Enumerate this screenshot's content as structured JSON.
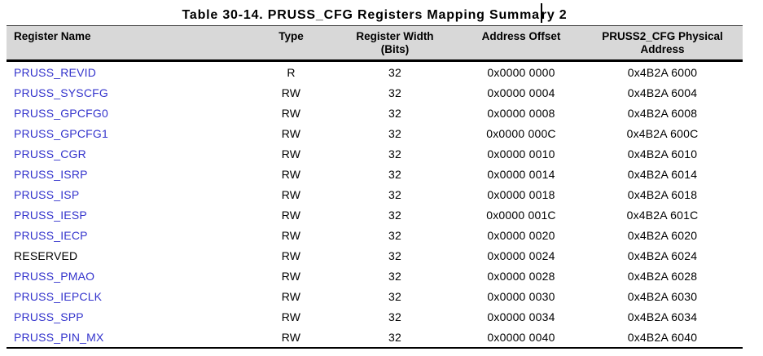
{
  "title": {
    "full": "Table 30-14. PRUSS_CFG Registers Mapping Summary 2",
    "before_caret": "Table 30-14. PRUSS_CFG Registers Mapping Summa",
    "after_caret": "ry 2"
  },
  "colors": {
    "link_blue": "#3333cc",
    "header_bg": "#d8d8d8",
    "border_black": "#000000"
  },
  "table": {
    "columns": [
      {
        "line1": "Register Name",
        "line2": ""
      },
      {
        "line1": "Type",
        "line2": ""
      },
      {
        "line1": "Register Width",
        "line2": "(Bits)"
      },
      {
        "line1": "Address Offset",
        "line2": ""
      },
      {
        "line1": "PRUSS2_CFG Physical",
        "line2": "Address"
      }
    ],
    "rows": [
      {
        "name": "PRUSS_REVID",
        "type": "R",
        "width": "32",
        "offset": "0x0000 0000",
        "address": "0x4B2A 6000",
        "is_link": true
      },
      {
        "name": "PRUSS_SYSCFG",
        "type": "RW",
        "width": "32",
        "offset": "0x0000 0004",
        "address": "0x4B2A 6004",
        "is_link": true
      },
      {
        "name": "PRUSS_GPCFG0",
        "type": "RW",
        "width": "32",
        "offset": "0x0000 0008",
        "address": "0x4B2A 6008",
        "is_link": true
      },
      {
        "name": "PRUSS_GPCFG1",
        "type": "RW",
        "width": "32",
        "offset": "0x0000 000C",
        "address": "0x4B2A 600C",
        "is_link": true
      },
      {
        "name": "PRUSS_CGR",
        "type": "RW",
        "width": "32",
        "offset": "0x0000 0010",
        "address": "0x4B2A 6010",
        "is_link": true
      },
      {
        "name": "PRUSS_ISRP",
        "type": "RW",
        "width": "32",
        "offset": "0x0000 0014",
        "address": "0x4B2A 6014",
        "is_link": true
      },
      {
        "name": "PRUSS_ISP",
        "type": "RW",
        "width": "32",
        "offset": "0x0000 0018",
        "address": "0x4B2A 6018",
        "is_link": true
      },
      {
        "name": "PRUSS_IESP",
        "type": "RW",
        "width": "32",
        "offset": "0x0000 001C",
        "address": "0x4B2A 601C",
        "is_link": true
      },
      {
        "name": "PRUSS_IECP",
        "type": "RW",
        "width": "32",
        "offset": "0x0000 0020",
        "address": "0x4B2A 6020",
        "is_link": true
      },
      {
        "name": "RESERVED",
        "type": "RW",
        "width": "32",
        "offset": "0x0000 0024",
        "address": "0x4B2A 6024",
        "is_link": false
      },
      {
        "name": "PRUSS_PMAO",
        "type": "RW",
        "width": "32",
        "offset": "0x0000 0028",
        "address": "0x4B2A 6028",
        "is_link": true
      },
      {
        "name": "PRUSS_IEPCLK",
        "type": "RW",
        "width": "32",
        "offset": "0x0000 0030",
        "address": "0x4B2A 6030",
        "is_link": true
      },
      {
        "name": "PRUSS_SPP",
        "type": "RW",
        "width": "32",
        "offset": "0x0000 0034",
        "address": "0x4B2A 6034",
        "is_link": true
      },
      {
        "name": "PRUSS_PIN_MX",
        "type": "RW",
        "width": "32",
        "offset": "0x0000 0040",
        "address": "0x4B2A 6040",
        "is_link": true
      }
    ]
  }
}
